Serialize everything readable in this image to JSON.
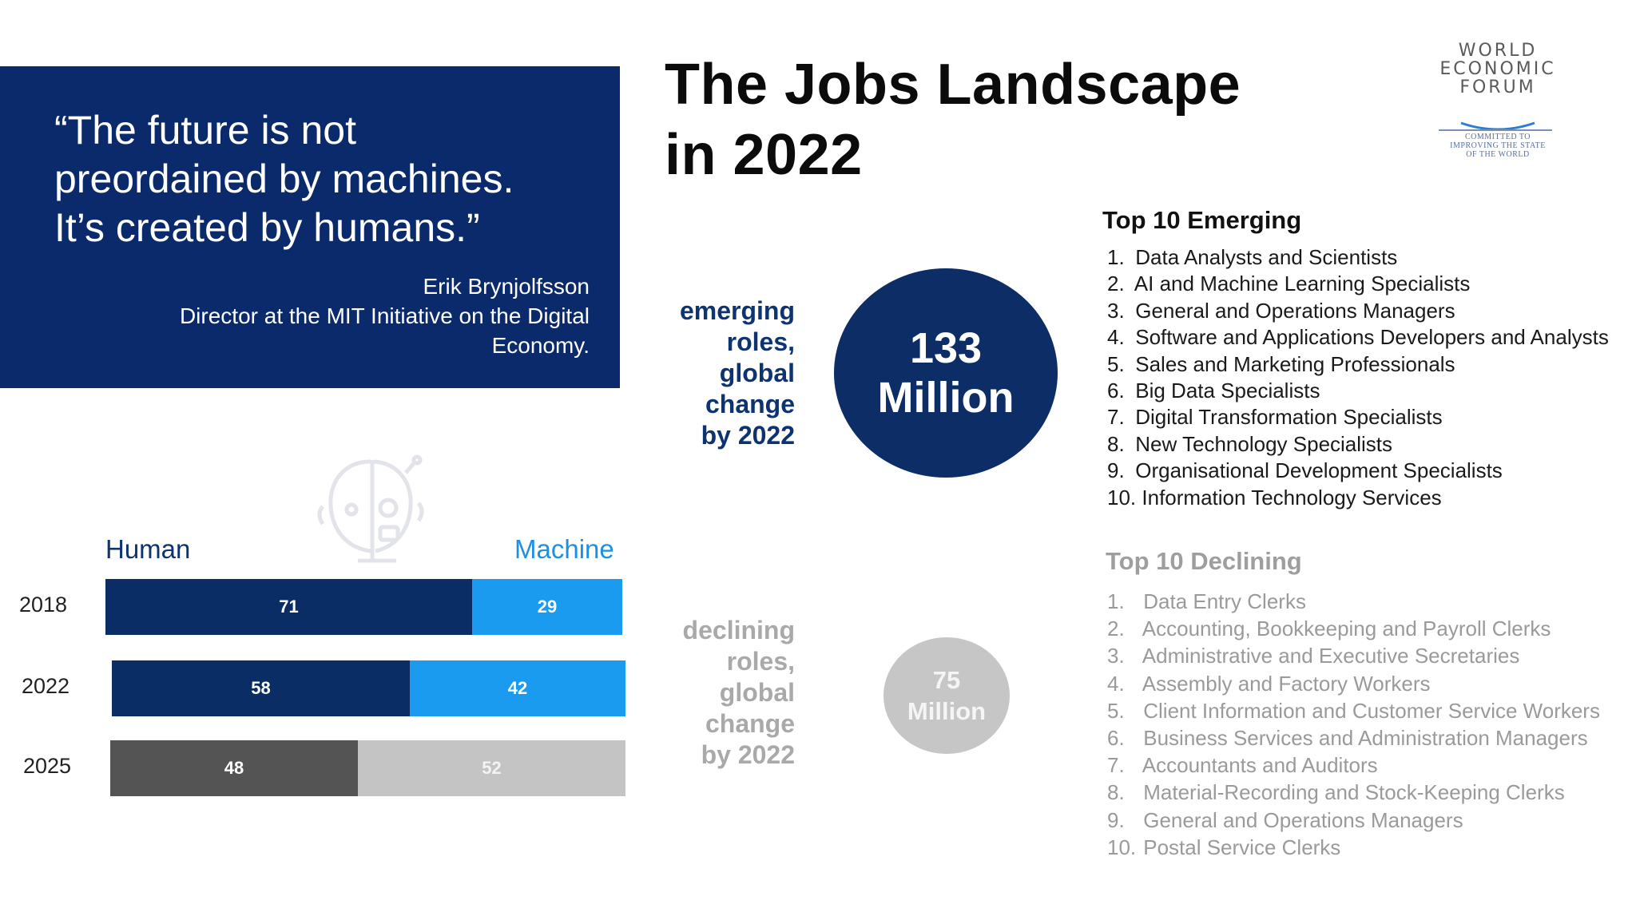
{
  "quote": {
    "text": "“The future is not\npreordained by machines.\nIt’s created by humans.”",
    "author": "Erik Brynjolfsson",
    "role": "Director at the MIT Initiative on the Digital\nEconomy."
  },
  "title": "The Jobs Landscape\nin 2022",
  "logo": {
    "name": "WORLD\nECONOMIC\nFORUM",
    "tagline": "COMMITTED TO\nIMPROVING THE STATE\nOF THE WORLD"
  },
  "emerging": {
    "label": "emerging\nroles,\nglobal\nchange\nby 2022",
    "count": "133\nMillion",
    "list_title": "Top 10 Emerging",
    "items": [
      "Data Analysts and Scientists",
      "AI and Machine Learning Specialists",
      "General and Operations Managers",
      "Software and Applications Developers and Analysts",
      "Sales and Marketing Professionals",
      "Big Data Specialists",
      "Digital Transformation Specialists",
      "New Technology Specialists",
      "Organisational Development Specialists",
      "Information Technology Services"
    ]
  },
  "declining": {
    "label": "declining\nroles,\nglobal\nchange\nby 2022",
    "count": "75\nMillion",
    "list_title": "Top 10 Declining",
    "items": [
      "Data Entry Clerks",
      "Accounting,  Bookkeeping and Payroll Clerks",
      "Administrative and Executive Secretaries",
      "Assembly and Factory Workers",
      "Client Information and Customer Service Workers",
      "Business Services and Administration Managers",
      "Accountants and Auditors",
      "Material-Recording and Stock-Keeping Clerks",
      "General and Operations Managers",
      "Postal Service Clerks"
    ]
  },
  "chart_data": {
    "type": "bar",
    "orientation": "horizontal-stacked",
    "categories": [
      "2018",
      "2022",
      "2025"
    ],
    "series": [
      {
        "name": "Human",
        "values": [
          71,
          58,
          48
        ]
      },
      {
        "name": "Machine",
        "values": [
          29,
          42,
          52
        ]
      }
    ],
    "legend": [
      "Human",
      "Machine"
    ],
    "colors": {
      "human": [
        "#0b2d66",
        "#0b2d66",
        "#545454"
      ],
      "machine": [
        "#1a9bf0",
        "#1a9bf0",
        "#c4c4c4"
      ],
      "human_label": "#0d3470",
      "machine_label": "#1f8fe0"
    }
  }
}
